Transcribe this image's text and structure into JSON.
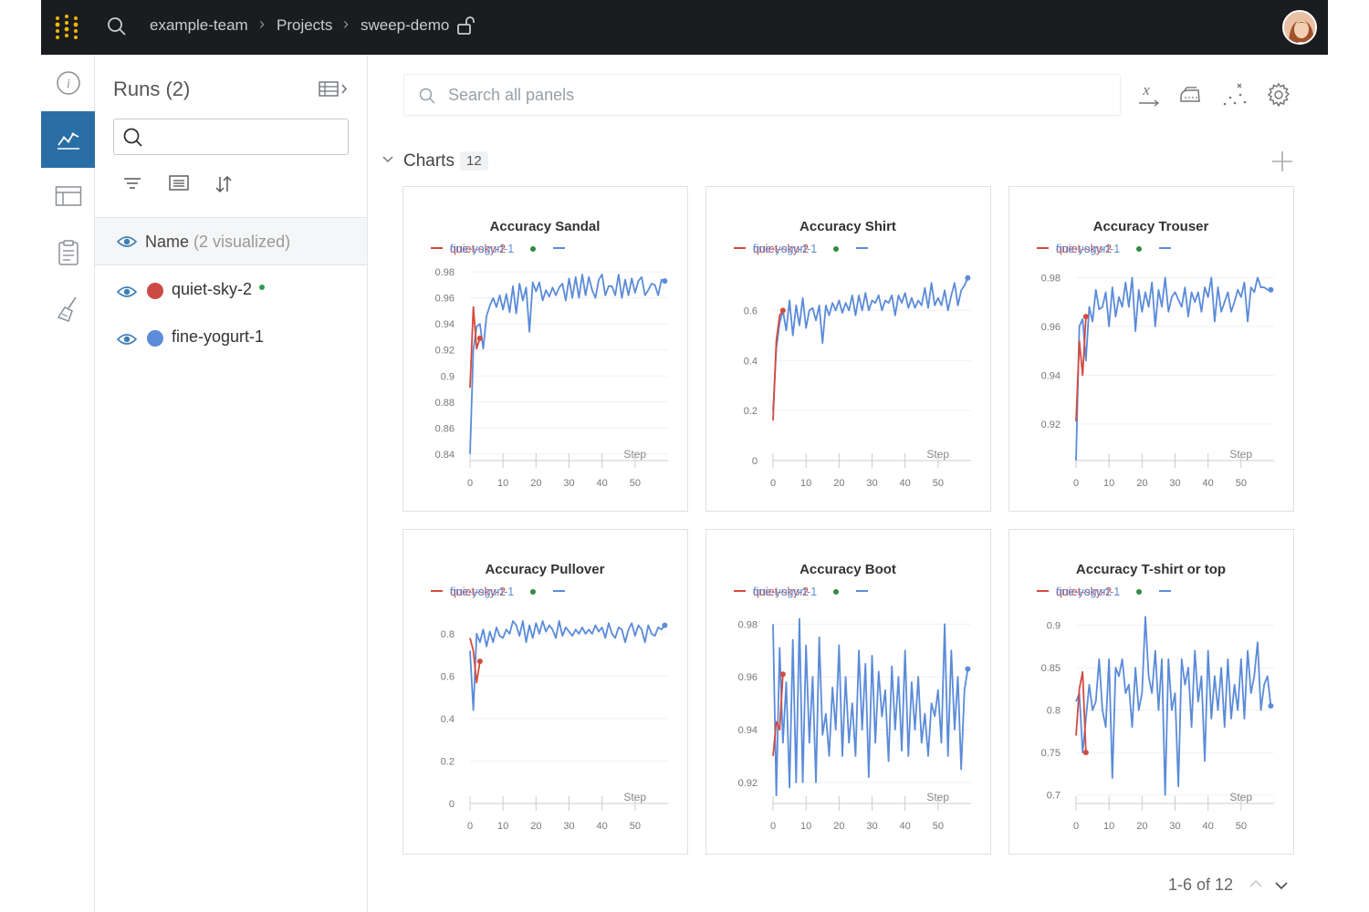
{
  "topbar": {
    "breadcrumb": [
      "example-team",
      "Projects",
      "sweep-demo"
    ]
  },
  "runs_panel": {
    "title": "Runs (2)",
    "column_header": "Name",
    "visualized": "(2 visualized)",
    "runs": [
      {
        "name": "quiet-sky-2",
        "color": "#cc4a44",
        "live": true
      },
      {
        "name": "fine-yogurt-1",
        "color": "#5b8bd9",
        "live": false
      }
    ]
  },
  "main": {
    "search_placeholder": "Search all panels",
    "section_label": "Charts",
    "section_count": "12",
    "pager": "1-6 of 12"
  },
  "colors": {
    "run1": "#d44a3f",
    "run2": "#5b8bd9",
    "accent": "#2a6ea6"
  },
  "chart_data": [
    {
      "type": "line",
      "title": "Accuracy Sandal",
      "xlabel": "Step",
      "xticks": [
        0,
        10,
        20,
        30,
        40,
        50
      ],
      "yticks": [
        0.84,
        0.86,
        0.88,
        0.9,
        0.92,
        0.94,
        0.96,
        0.98
      ],
      "ytick_labels": [
        "0.84",
        "0.86",
        "0.88",
        "0.9",
        "0.92",
        "0.94",
        "0.96",
        "0.98"
      ],
      "ylim": [
        0.835,
        0.985
      ],
      "xlim": [
        0,
        60
      ],
      "legend": [
        "quiet-sky-2",
        "fine-yogurt-1"
      ],
      "series": [
        {
          "name": "quiet-sky-2",
          "x": [
            0,
            1,
            2,
            3
          ],
          "y": [
            0.891,
            0.953,
            0.921,
            0.929
          ]
        },
        {
          "name": "fine-yogurt-1",
          "x": [
            0,
            1,
            2,
            3,
            4,
            5,
            6,
            7,
            8,
            9,
            10,
            11,
            12,
            13,
            14,
            15,
            16,
            17,
            18,
            19,
            20,
            21,
            22,
            23,
            24,
            25,
            26,
            27,
            28,
            29,
            30,
            31,
            32,
            33,
            34,
            35,
            36,
            37,
            38,
            39,
            40,
            41,
            42,
            43,
            44,
            45,
            46,
            47,
            48,
            49,
            50,
            51,
            52,
            53,
            54,
            55,
            56,
            57,
            58,
            59
          ],
          "y": [
            0.84,
            0.92,
            0.938,
            0.94,
            0.921,
            0.946,
            0.954,
            0.96,
            0.953,
            0.962,
            0.951,
            0.963,
            0.949,
            0.969,
            0.948,
            0.971,
            0.958,
            0.968,
            0.934,
            0.972,
            0.965,
            0.972,
            0.958,
            0.966,
            0.961,
            0.968,
            0.962,
            0.968,
            0.971,
            0.958,
            0.975,
            0.96,
            0.976,
            0.96,
            0.978,
            0.962,
            0.976,
            0.966,
            0.96,
            0.974,
            0.978,
            0.962,
            0.969,
            0.969,
            0.962,
            0.978,
            0.96,
            0.974,
            0.962,
            0.975,
            0.964,
            0.973,
            0.976,
            0.962,
            0.966,
            0.971,
            0.97,
            0.962,
            0.974,
            0.973
          ]
        }
      ]
    },
    {
      "type": "line",
      "title": "Accuracy Shirt",
      "xlabel": "Step",
      "xticks": [
        0,
        10,
        20,
        30,
        40,
        50
      ],
      "yticks": [
        0,
        0.2,
        0.4,
        0.6
      ],
      "ytick_labels": [
        "0",
        "0.2",
        "0.4",
        "0.6"
      ],
      "ylim": [
        0,
        0.78
      ],
      "xlim": [
        0,
        60
      ],
      "legend": [
        "quiet-sky-2",
        "fine-yogurt-1"
      ],
      "series": [
        {
          "name": "quiet-sky-2",
          "x": [
            0,
            1,
            2,
            3
          ],
          "y": [
            0.16,
            0.48,
            0.58,
            0.6
          ]
        },
        {
          "name": "fine-yogurt-1",
          "x": [
            0,
            1,
            2,
            3,
            4,
            5,
            6,
            7,
            8,
            9,
            10,
            11,
            12,
            13,
            14,
            15,
            16,
            17,
            18,
            19,
            20,
            21,
            22,
            23,
            24,
            25,
            26,
            27,
            28,
            29,
            30,
            31,
            32,
            33,
            34,
            35,
            36,
            37,
            38,
            39,
            40,
            41,
            42,
            43,
            44,
            45,
            46,
            47,
            48,
            49,
            50,
            51,
            52,
            53,
            54,
            55,
            56,
            57,
            58,
            59
          ],
          "y": [
            0.2,
            0.45,
            0.55,
            0.6,
            0.52,
            0.64,
            0.5,
            0.62,
            0.54,
            0.65,
            0.53,
            0.6,
            0.61,
            0.56,
            0.62,
            0.47,
            0.62,
            0.58,
            0.63,
            0.6,
            0.64,
            0.59,
            0.63,
            0.6,
            0.66,
            0.58,
            0.66,
            0.6,
            0.67,
            0.6,
            0.64,
            0.63,
            0.66,
            0.6,
            0.64,
            0.63,
            0.66,
            0.58,
            0.66,
            0.63,
            0.67,
            0.61,
            0.65,
            0.61,
            0.64,
            0.62,
            0.69,
            0.61,
            0.71,
            0.62,
            0.65,
            0.62,
            0.68,
            0.6,
            0.66,
            0.71,
            0.62,
            0.68,
            0.7,
            0.73
          ]
        }
      ]
    },
    {
      "type": "line",
      "title": "Accuracy Trouser",
      "xlabel": "Step",
      "xticks": [
        0,
        10,
        20,
        30,
        40,
        50
      ],
      "yticks": [
        0.92,
        0.94,
        0.96,
        0.98
      ],
      "ytick_labels": [
        "0.92",
        "0.94",
        "0.96",
        "0.98"
      ],
      "ylim": [
        0.905,
        0.985
      ],
      "xlim": [
        0,
        60
      ],
      "legend": [
        "quiet-sky-2",
        "fine-yogurt-1"
      ],
      "series": [
        {
          "name": "quiet-sky-2",
          "x": [
            0,
            1,
            2,
            3
          ],
          "y": [
            0.921,
            0.954,
            0.94,
            0.964
          ]
        },
        {
          "name": "fine-yogurt-1",
          "x": [
            0,
            1,
            2,
            3,
            4,
            5,
            6,
            7,
            8,
            9,
            10,
            11,
            12,
            13,
            14,
            15,
            16,
            17,
            18,
            19,
            20,
            21,
            22,
            23,
            24,
            25,
            26,
            27,
            28,
            29,
            30,
            31,
            32,
            33,
            34,
            35,
            36,
            37,
            38,
            39,
            40,
            41,
            42,
            43,
            44,
            45,
            46,
            47,
            48,
            49,
            50,
            51,
            52,
            53,
            54,
            55,
            56,
            57,
            58,
            59
          ],
          "y": [
            0.905,
            0.96,
            0.963,
            0.946,
            0.968,
            0.962,
            0.975,
            0.967,
            0.968,
            0.974,
            0.96,
            0.976,
            0.964,
            0.972,
            0.968,
            0.978,
            0.968,
            0.98,
            0.958,
            0.975,
            0.966,
            0.974,
            0.968,
            0.978,
            0.96,
            0.975,
            0.968,
            0.98,
            0.966,
            0.972,
            0.974,
            0.971,
            0.968,
            0.976,
            0.964,
            0.974,
            0.97,
            0.974,
            0.966,
            0.976,
            0.972,
            0.98,
            0.962,
            0.976,
            0.966,
            0.97,
            0.974,
            0.966,
            0.97,
            0.975,
            0.972,
            0.978,
            0.962,
            0.976,
            0.974,
            0.98,
            0.976,
            0.976,
            0.975,
            0.975
          ]
        }
      ]
    },
    {
      "type": "line",
      "title": "Accuracy Pullover",
      "xlabel": "Step",
      "xticks": [
        0,
        10,
        20,
        30,
        40,
        50
      ],
      "yticks": [
        0,
        0.2,
        0.4,
        0.6,
        0.8
      ],
      "ytick_labels": [
        "0",
        "0.2",
        "0.4",
        "0.6",
        "0.8"
      ],
      "ylim": [
        0,
        0.92
      ],
      "xlim": [
        0,
        60
      ],
      "legend": [
        "quiet-sky-2",
        "fine-yogurt-1"
      ],
      "series": [
        {
          "name": "quiet-sky-2",
          "x": [
            0,
            1,
            2,
            3
          ],
          "y": [
            0.78,
            0.72,
            0.57,
            0.67
          ]
        },
        {
          "name": "fine-yogurt-1",
          "x": [
            0,
            1,
            2,
            3,
            4,
            5,
            6,
            7,
            8,
            9,
            10,
            11,
            12,
            13,
            14,
            15,
            16,
            17,
            18,
            19,
            20,
            21,
            22,
            23,
            24,
            25,
            26,
            27,
            28,
            29,
            30,
            31,
            32,
            33,
            34,
            35,
            36,
            37,
            38,
            39,
            40,
            41,
            42,
            43,
            44,
            45,
            46,
            47,
            48,
            49,
            50,
            51,
            52,
            53,
            54,
            55,
            56,
            57,
            58,
            59
          ],
          "y": [
            0.72,
            0.44,
            0.8,
            0.76,
            0.82,
            0.74,
            0.81,
            0.76,
            0.83,
            0.79,
            0.78,
            0.82,
            0.8,
            0.86,
            0.84,
            0.79,
            0.86,
            0.76,
            0.84,
            0.78,
            0.85,
            0.8,
            0.86,
            0.81,
            0.84,
            0.82,
            0.78,
            0.86,
            0.79,
            0.83,
            0.81,
            0.79,
            0.82,
            0.8,
            0.83,
            0.8,
            0.82,
            0.8,
            0.84,
            0.81,
            0.83,
            0.78,
            0.85,
            0.8,
            0.78,
            0.83,
            0.82,
            0.76,
            0.82,
            0.85,
            0.79,
            0.84,
            0.82,
            0.76,
            0.84,
            0.8,
            0.79,
            0.83,
            0.82,
            0.84
          ]
        }
      ]
    },
    {
      "type": "line",
      "title": "Accuracy Boot",
      "xlabel": "Step",
      "xticks": [
        0,
        10,
        20,
        30,
        40,
        50
      ],
      "yticks": [
        0.92,
        0.94,
        0.96,
        0.98
      ],
      "ytick_labels": [
        "0.92",
        "0.94",
        "0.96",
        "0.98"
      ],
      "ylim": [
        0.912,
        0.986
      ],
      "xlim": [
        0,
        60
      ],
      "legend": [
        "quiet-sky-2",
        "fine-yogurt-1"
      ],
      "series": [
        {
          "name": "quiet-sky-2",
          "x": [
            0,
            1,
            2,
            3
          ],
          "y": [
            0.93,
            0.943,
            0.94,
            0.961
          ]
        },
        {
          "name": "fine-yogurt-1",
          "x": [
            0,
            1,
            2,
            3,
            4,
            5,
            6,
            7,
            8,
            9,
            10,
            11,
            12,
            13,
            14,
            15,
            16,
            17,
            18,
            19,
            20,
            21,
            22,
            23,
            24,
            25,
            26,
            27,
            28,
            29,
            30,
            31,
            32,
            33,
            34,
            35,
            36,
            37,
            38,
            39,
            40,
            41,
            42,
            43,
            44,
            45,
            46,
            47,
            48,
            49,
            50,
            51,
            52,
            53,
            54,
            55,
            56,
            57,
            58,
            59
          ],
          "y": [
            0.98,
            0.915,
            0.971,
            0.935,
            0.958,
            0.918,
            0.974,
            0.92,
            0.982,
            0.92,
            0.972,
            0.935,
            0.96,
            0.92,
            0.975,
            0.938,
            0.946,
            0.93,
            0.956,
            0.94,
            0.972,
            0.93,
            0.96,
            0.935,
            0.95,
            0.93,
            0.97,
            0.94,
            0.965,
            0.922,
            0.968,
            0.935,
            0.962,
            0.945,
            0.955,
            0.928,
            0.964,
            0.94,
            0.96,
            0.932,
            0.97,
            0.93,
            0.958,
            0.94,
            0.96,
            0.935,
            0.946,
            0.93,
            0.95,
            0.945,
            0.955,
            0.935,
            0.98,
            0.93,
            0.97,
            0.94,
            0.96,
            0.925,
            0.955,
            0.963
          ]
        }
      ]
    },
    {
      "type": "line",
      "title": "Accuracy T-shirt or top",
      "xlabel": "Step",
      "xticks": [
        0,
        10,
        20,
        30,
        40,
        50
      ],
      "yticks": [
        0.7,
        0.75,
        0.8,
        0.85,
        0.9
      ],
      "ytick_labels": [
        "0.7",
        "0.75",
        "0.8",
        "0.85",
        "0.9"
      ],
      "ylim": [
        0.69,
        0.92
      ],
      "xlim": [
        0,
        60
      ],
      "legend": [
        "quiet-sky-2",
        "fine-yogurt-1"
      ],
      "series": [
        {
          "name": "quiet-sky-2",
          "x": [
            0,
            1,
            2,
            3
          ],
          "y": [
            0.77,
            0.825,
            0.845,
            0.75
          ]
        },
        {
          "name": "fine-yogurt-1",
          "x": [
            0,
            1,
            2,
            3,
            4,
            5,
            6,
            7,
            8,
            9,
            10,
            11,
            12,
            13,
            14,
            15,
            16,
            17,
            18,
            19,
            20,
            21,
            22,
            23,
            24,
            25,
            26,
            27,
            28,
            29,
            30,
            31,
            32,
            33,
            34,
            35,
            36,
            37,
            38,
            39,
            40,
            41,
            42,
            43,
            44,
            45,
            46,
            47,
            48,
            49,
            50,
            51,
            52,
            53,
            54,
            55,
            56,
            57,
            58,
            59
          ],
          "y": [
            0.81,
            0.82,
            0.75,
            0.79,
            0.83,
            0.8,
            0.81,
            0.86,
            0.8,
            0.78,
            0.86,
            0.72,
            0.85,
            0.84,
            0.86,
            0.82,
            0.83,
            0.78,
            0.85,
            0.8,
            0.82,
            0.91,
            0.84,
            0.82,
            0.87,
            0.8,
            0.86,
            0.7,
            0.86,
            0.8,
            0.82,
            0.71,
            0.86,
            0.83,
            0.85,
            0.78,
            0.87,
            0.81,
            0.84,
            0.74,
            0.87,
            0.79,
            0.84,
            0.8,
            0.85,
            0.78,
            0.86,
            0.79,
            0.83,
            0.8,
            0.86,
            0.79,
            0.87,
            0.82,
            0.84,
            0.88,
            0.8,
            0.83,
            0.84,
            0.805
          ]
        }
      ]
    }
  ]
}
